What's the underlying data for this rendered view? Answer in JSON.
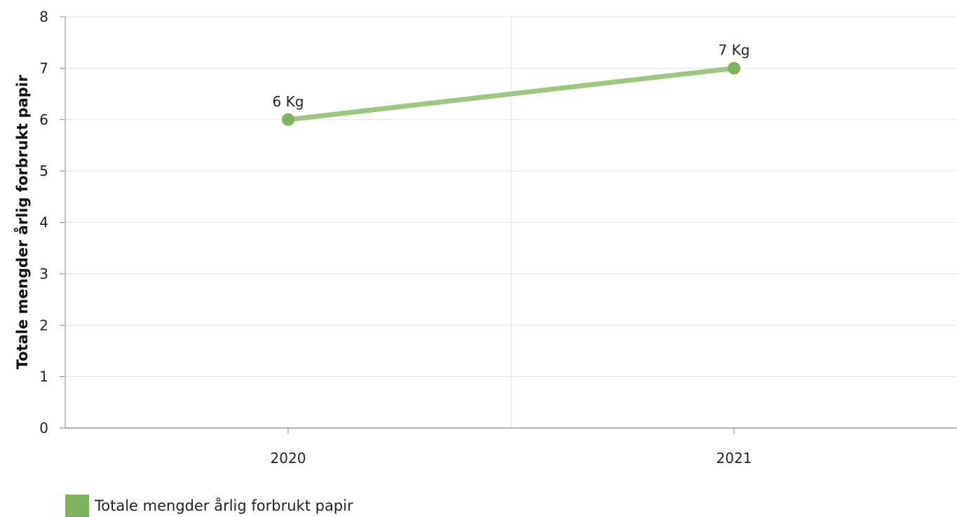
{
  "chart_data": {
    "type": "line",
    "title": "",
    "xlabel": "",
    "ylabel": "Totale mengder årlig forbrukt papir",
    "categories": [
      "2020",
      "2021"
    ],
    "ylim": [
      0,
      8
    ],
    "yticks": [
      "0",
      "1",
      "2",
      "3",
      "4",
      "5",
      "6",
      "7",
      "8"
    ],
    "series": [
      {
        "name": "Totale mengder årlig forbrukt papir",
        "values": [
          6,
          7
        ],
        "labels": [
          "6 Kg",
          "7 Kg"
        ],
        "color": "#7db35d",
        "line_color": "#9bc77f"
      }
    ],
    "grid": true,
    "legend": "bottom-left"
  }
}
